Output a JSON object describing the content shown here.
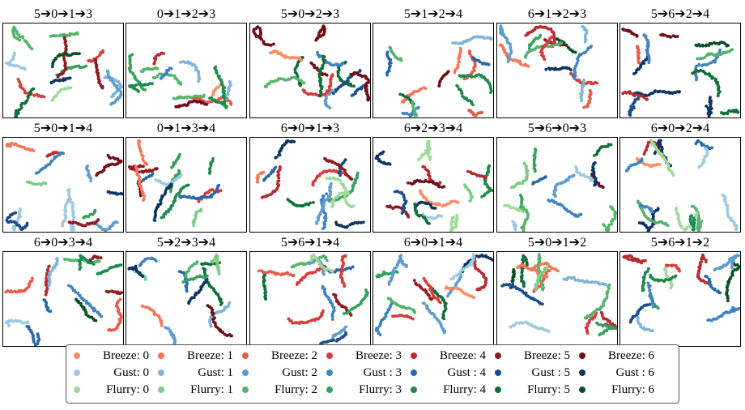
{
  "palette": {
    "breeze": [
      "#fc8d62",
      "#f7755a",
      "#e8594a",
      "#d43d3a",
      "#b82a2f",
      "#8f1a22",
      "#6e0f18"
    ],
    "gust": [
      "#9ecae1",
      "#7fb4d8",
      "#5d9ccc",
      "#3f83bf",
      "#2a67a8",
      "#1a4d8c",
      "#0d3463"
    ],
    "flurry": [
      "#a1d99b",
      "#7ccc86",
      "#54b46e",
      "#35a05e",
      "#1e8a4c",
      "#0f6e3a",
      "#0a4f2a"
    ]
  },
  "chart_data": [
    {
      "type": "scatter",
      "title": "5➔0➔1➔3",
      "seed": 11
    },
    {
      "type": "scatter",
      "title": "0➔1➔2➔3",
      "seed": 12
    },
    {
      "type": "scatter",
      "title": "5➔0➔2➔3",
      "seed": 13
    },
    {
      "type": "scatter",
      "title": "5➔1➔2➔4",
      "seed": 14
    },
    {
      "type": "scatter",
      "title": "6➔1➔2➔3",
      "seed": 15
    },
    {
      "type": "scatter",
      "title": "5➔6➔2➔4",
      "seed": 16
    },
    {
      "type": "scatter",
      "title": "5➔0➔1➔4",
      "seed": 21
    },
    {
      "type": "scatter",
      "title": "0➔1➔3➔4",
      "seed": 22
    },
    {
      "type": "scatter",
      "title": "6➔0➔1➔3",
      "seed": 23
    },
    {
      "type": "scatter",
      "title": "6➔2➔3➔4",
      "seed": 24
    },
    {
      "type": "scatter",
      "title": "5➔6➔0➔3",
      "seed": 25
    },
    {
      "type": "scatter",
      "title": "6➔0➔2➔4",
      "seed": 26
    },
    {
      "type": "scatter",
      "title": "6➔0➔3➔4",
      "seed": 31
    },
    {
      "type": "scatter",
      "title": "5➔2➔3➔4",
      "seed": 32
    },
    {
      "type": "scatter",
      "title": "5➔6➔1➔4",
      "seed": 33
    },
    {
      "type": "scatter",
      "title": "6➔0➔1➔4",
      "seed": 34
    },
    {
      "type": "scatter",
      "title": "5➔0➔1➔2",
      "seed": 35
    },
    {
      "type": "scatter",
      "title": "5➔6➔1➔2",
      "seed": 36
    }
  ],
  "legend": {
    "placement": "bottom",
    "rows": [
      [
        "Breeze: 0",
        "Breeze: 1",
        "Breeze: 2",
        "Breeze: 3",
        "Breeze: 4",
        "Breeze: 5",
        "Breeze: 6"
      ],
      [
        "Gust: 0",
        "Gust: 1",
        "Gust: 2",
        "Gust : 3",
        "Gust : 4",
        "Gust : 5",
        "Gust : 6"
      ],
      [
        "Flurry: 0",
        "Flurry: 1",
        "Flurry: 2",
        "Flurry: 3",
        "Flurry: 4",
        "Flurry: 5",
        "Flurry: 6"
      ]
    ]
  }
}
